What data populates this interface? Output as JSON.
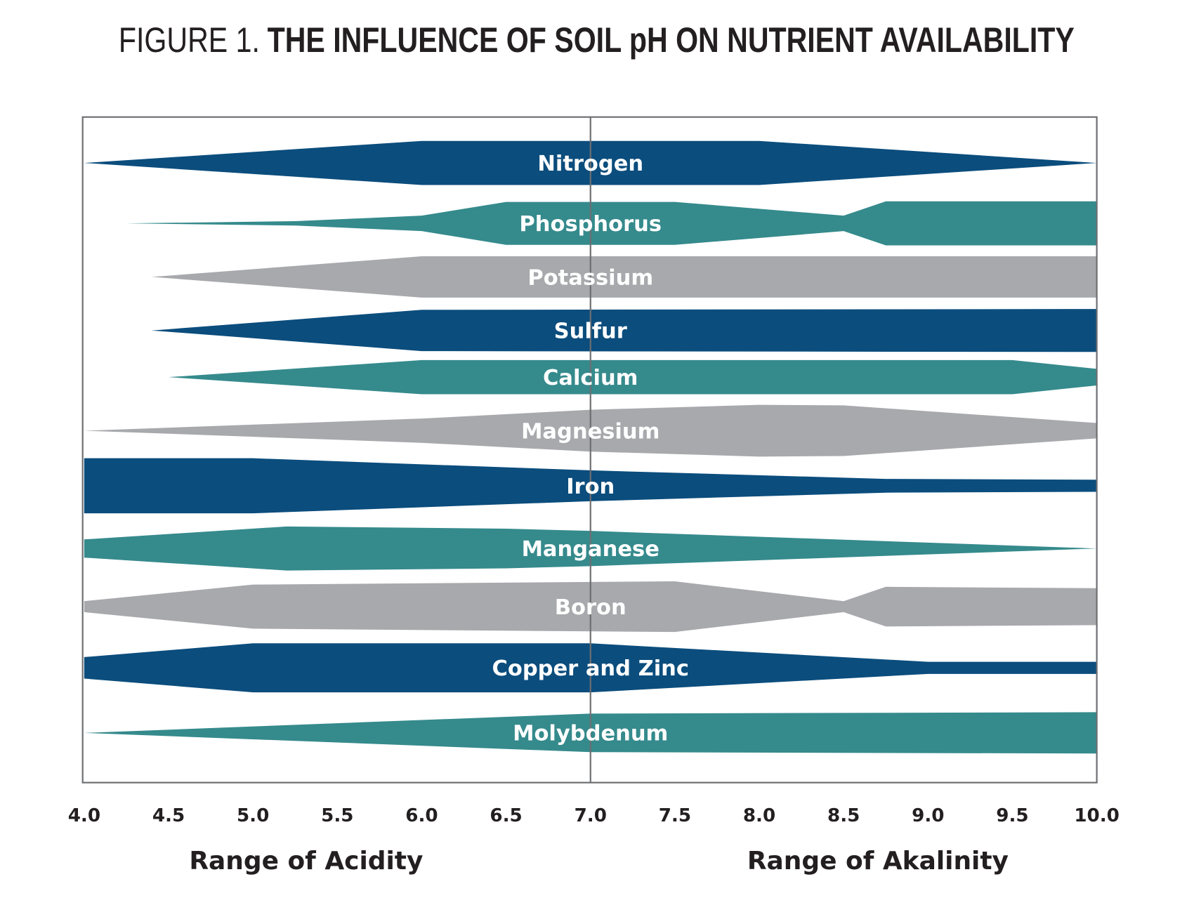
{
  "chart_data": {
    "type": "area",
    "title_prefix": "FIGURE 1.",
    "title": "THE INFLUENCE OF SOIL pH ON NUTRIENT AVAILABILITY",
    "xlim": [
      4.0,
      10.0
    ],
    "x_ticks": [
      "4.0",
      "4.5",
      "5.0",
      "5.5",
      "6.0",
      "6.5",
      "7.0",
      "7.5",
      "8.0",
      "8.5",
      "9.0",
      "9.5",
      "10.0"
    ],
    "reference_line_x": 7.0,
    "range_labels": {
      "acidity": "Range of Acidity",
      "alkalinity": "Range of Akalinity"
    },
    "colors": {
      "navy": "#0b4d7d",
      "teal": "#358a8c",
      "gray": "#a7a9ac"
    },
    "series": [
      {
        "name": "Nitrogen",
        "color": "navy",
        "points": [
          [
            4.0,
            0
          ],
          [
            6.0,
            0.8
          ],
          [
            8.0,
            0.8
          ],
          [
            10.0,
            0
          ]
        ]
      },
      {
        "name": "Phosphorus",
        "color": "teal",
        "points": [
          [
            4.25,
            0
          ],
          [
            5.25,
            0.08
          ],
          [
            6.0,
            0.28
          ],
          [
            6.5,
            0.78
          ],
          [
            7.5,
            0.78
          ],
          [
            8.5,
            0.28
          ],
          [
            8.75,
            0.8
          ],
          [
            10.0,
            0.8
          ]
        ]
      },
      {
        "name": "Potassium",
        "color": "gray",
        "points": [
          [
            4.4,
            0
          ],
          [
            6.0,
            0.75
          ],
          [
            10.0,
            0.75
          ]
        ]
      },
      {
        "name": "Sulfur",
        "color": "navy",
        "points": [
          [
            4.4,
            0
          ],
          [
            6.0,
            0.75
          ],
          [
            10.0,
            0.78
          ]
        ]
      },
      {
        "name": "Calcium",
        "color": "teal",
        "points": [
          [
            4.5,
            0
          ],
          [
            6.0,
            0.62
          ],
          [
            9.5,
            0.62
          ],
          [
            10.0,
            0.3
          ]
        ]
      },
      {
        "name": "Magnesium",
        "color": "gray",
        "points": [
          [
            4.0,
            0
          ],
          [
            6.0,
            0.44
          ],
          [
            7.0,
            0.76
          ],
          [
            8.0,
            0.94
          ],
          [
            8.5,
            0.92
          ],
          [
            10.0,
            0.28
          ]
        ]
      },
      {
        "name": "Iron",
        "color": "navy",
        "points": [
          [
            4.0,
            1.0
          ],
          [
            5.0,
            1.0
          ],
          [
            7.0,
            0.56
          ],
          [
            8.75,
            0.25
          ],
          [
            10.0,
            0.22
          ]
        ]
      },
      {
        "name": "Manganese",
        "color": "teal",
        "points": [
          [
            4.0,
            0.33
          ],
          [
            5.2,
            0.8
          ],
          [
            6.5,
            0.72
          ],
          [
            7.0,
            0.64
          ],
          [
            10.0,
            0
          ]
        ]
      },
      {
        "name": "Boron",
        "color": "gray",
        "points": [
          [
            4.0,
            0.2
          ],
          [
            5.0,
            0.8
          ],
          [
            7.5,
            0.92
          ],
          [
            8.5,
            0.2
          ],
          [
            8.75,
            0.72
          ],
          [
            10.0,
            0.67
          ]
        ]
      },
      {
        "name": "Copper and Zinc",
        "color": "navy",
        "points": [
          [
            4.0,
            0.39
          ],
          [
            5.0,
            0.89
          ],
          [
            7.0,
            0.89
          ],
          [
            9.0,
            0.22
          ],
          [
            10.0,
            0.22
          ]
        ]
      },
      {
        "name": "Molybdenum",
        "color": "teal",
        "points": [
          [
            4.0,
            0
          ],
          [
            7.0,
            0.7
          ],
          [
            10.0,
            0.75
          ]
        ]
      }
    ]
  }
}
